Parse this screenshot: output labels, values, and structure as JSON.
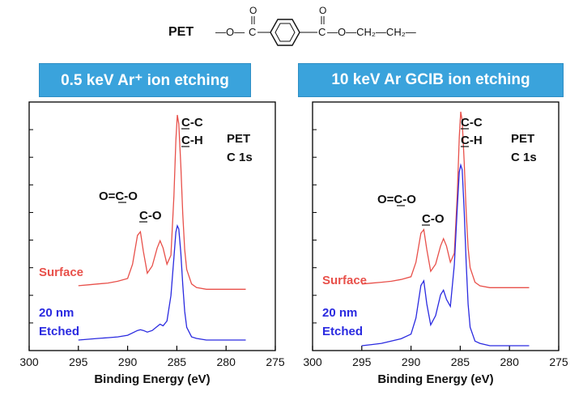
{
  "header": {
    "label": "PET",
    "structure": {
      "left_chain": "—O—",
      "o_top_1": "O",
      "o_top_2": "O",
      "c1": "C",
      "c2": "C",
      "right_chain": "—O—CH₂—CH₂—"
    }
  },
  "panels": [
    {
      "banner": "0.5 keV Ar⁺ ion etching"
    },
    {
      "banner": "10 keV Ar GCIB ion etching"
    }
  ],
  "colors": {
    "banner": "#3aa3dc",
    "surface": "#e8504a",
    "etched": "#2a2ae0",
    "axis": "#000000"
  },
  "chart_data": [
    {
      "type": "line",
      "xlabel": "Binding Energy (eV)",
      "ylabel": "",
      "xlim": [
        300,
        275
      ],
      "xticks": [
        300,
        295,
        290,
        285,
        280,
        275
      ],
      "y_ticks_labeled": false,
      "annotations": [
        {
          "text": "C-C",
          "x": 284.8,
          "line": 1
        },
        {
          "text": "C-H",
          "x": 284.8,
          "line": 2
        },
        {
          "text": "PET",
          "x": 283,
          "line": 1
        },
        {
          "text": "C 1s",
          "x": 283,
          "line": 2
        },
        {
          "text": "O=C-O",
          "x": 288.9
        },
        {
          "text": "C-O",
          "x": 286.6
        }
      ],
      "series": [
        {
          "name": "Surface",
          "x": [
            295,
            294,
            293,
            292,
            291,
            290,
            289.5,
            289,
            288.7,
            288.4,
            288,
            287.5,
            287,
            286.7,
            286.4,
            286,
            285.6,
            285.3,
            285.1,
            284.95,
            284.8,
            284.6,
            284.4,
            284.2,
            284,
            283.5,
            283,
            282,
            281,
            280,
            279,
            278
          ],
          "y": [
            0.05,
            0.055,
            0.06,
            0.065,
            0.075,
            0.09,
            0.17,
            0.33,
            0.35,
            0.24,
            0.12,
            0.16,
            0.26,
            0.3,
            0.26,
            0.17,
            0.22,
            0.55,
            0.86,
            1.0,
            0.95,
            0.72,
            0.45,
            0.25,
            0.14,
            0.06,
            0.04,
            0.03,
            0.03,
            0.03,
            0.03,
            0.03
          ]
        },
        {
          "name": "20 nm Etched",
          "x": [
            295,
            294,
            293,
            292,
            291,
            290,
            289.5,
            289,
            288.7,
            288.4,
            288,
            287.5,
            287,
            286.7,
            286.4,
            286,
            285.6,
            285.3,
            285.1,
            284.95,
            284.8,
            284.6,
            284.4,
            284.2,
            284,
            283.5,
            283,
            282,
            281,
            280,
            279,
            278
          ],
          "y": [
            0.0,
            0.005,
            0.01,
            0.015,
            0.02,
            0.03,
            0.045,
            0.06,
            0.065,
            0.06,
            0.05,
            0.06,
            0.085,
            0.1,
            0.09,
            0.12,
            0.28,
            0.52,
            0.68,
            0.72,
            0.7,
            0.55,
            0.35,
            0.18,
            0.08,
            0.02,
            0.01,
            0.0,
            0.0,
            0.0,
            0.0,
            0.0
          ]
        }
      ]
    },
    {
      "type": "line",
      "xlabel": "Binding Energy (eV)",
      "ylabel": "",
      "xlim": [
        300,
        275
      ],
      "xticks": [
        300,
        295,
        290,
        285,
        280,
        275
      ],
      "y_ticks_labeled": false,
      "annotations": [
        {
          "text": "C-C",
          "x": 284.8,
          "line": 1
        },
        {
          "text": "C-H",
          "x": 284.8,
          "line": 2
        },
        {
          "text": "PET",
          "x": 283,
          "line": 1
        },
        {
          "text": "C 1s",
          "x": 283,
          "line": 2
        },
        {
          "text": "O=C-O",
          "x": 288.9
        },
        {
          "text": "C-O",
          "x": 286.6
        }
      ],
      "series": [
        {
          "name": "Surface",
          "x": [
            295,
            294,
            293,
            292,
            291,
            290,
            289.5,
            289,
            288.7,
            288.4,
            288,
            287.5,
            287,
            286.7,
            286.4,
            286,
            285.6,
            285.3,
            285.1,
            284.95,
            284.8,
            284.6,
            284.4,
            284.2,
            284,
            283.5,
            283,
            282,
            281,
            280,
            279,
            278
          ],
          "y": [
            0.05,
            0.055,
            0.06,
            0.065,
            0.075,
            0.09,
            0.17,
            0.33,
            0.35,
            0.24,
            0.12,
            0.16,
            0.26,
            0.3,
            0.26,
            0.17,
            0.22,
            0.55,
            0.86,
            1.0,
            0.95,
            0.72,
            0.45,
            0.25,
            0.14,
            0.06,
            0.04,
            0.03,
            0.03,
            0.03,
            0.03,
            0.03
          ]
        },
        {
          "name": "20 nm Etched",
          "x": [
            295,
            294,
            293,
            292,
            291,
            290,
            289.5,
            289,
            288.7,
            288.4,
            288,
            287.5,
            287,
            286.7,
            286.4,
            286,
            285.6,
            285.3,
            285.1,
            284.95,
            284.8,
            284.6,
            284.4,
            284.2,
            284,
            283.5,
            283,
            282,
            281,
            280,
            279,
            278
          ],
          "y": [
            0.0,
            0.005,
            0.01,
            0.02,
            0.03,
            0.05,
            0.12,
            0.26,
            0.28,
            0.18,
            0.09,
            0.13,
            0.22,
            0.24,
            0.2,
            0.17,
            0.35,
            0.6,
            0.75,
            0.78,
            0.76,
            0.58,
            0.36,
            0.18,
            0.08,
            0.02,
            0.01,
            0.0,
            0.0,
            0.0,
            0.0,
            0.0
          ]
        }
      ]
    }
  ]
}
